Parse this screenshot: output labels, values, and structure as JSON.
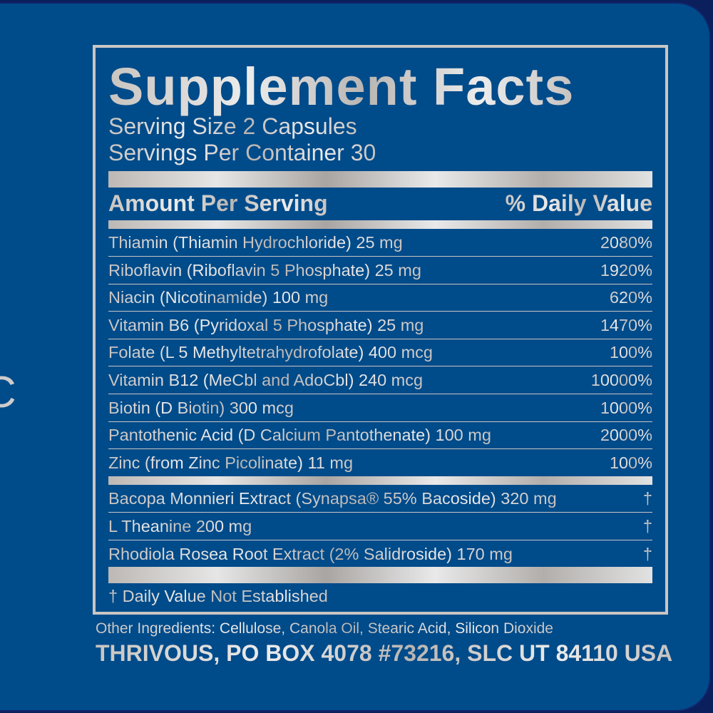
{
  "edge_letter": "C",
  "label": {
    "title": "Supplement Facts",
    "serving_size": "Serving Size 2 Capsules",
    "servings_per_container": "Servings Per Container 30",
    "header_amount": "Amount Per Serving",
    "header_dv": "% Daily Value",
    "vitamins": [
      {
        "name": "Thiamin (Thiamin Hydrochloride) 25 mg",
        "dv": "2080%"
      },
      {
        "name": "Riboflavin (Riboflavin 5 Phosphate) 25 mg",
        "dv": "1920%"
      },
      {
        "name": "Niacin (Nicotinamide) 100 mg",
        "dv": "620%"
      },
      {
        "name": "Vitamin B6 (Pyridoxal 5 Phosphate) 25 mg",
        "dv": "1470%"
      },
      {
        "name": "Folate (L 5 Methyltetrahydrofolate) 400 mcg",
        "dv": "100%"
      },
      {
        "name": "Vitamin B12 (MeCbl and AdoCbl) 240 mcg",
        "dv": "10000%"
      },
      {
        "name": "Biotin (D Biotin) 300 mcg",
        "dv": "1000%"
      },
      {
        "name": "Pantothenic Acid (D Calcium Pantothenate) 100 mg",
        "dv": "2000%"
      },
      {
        "name": "Zinc (from Zinc Picolinate) 11 mg",
        "dv": "100%"
      }
    ],
    "others": [
      {
        "name": "Bacopa Monnieri Extract (Synapsa® 55% Bacoside) 320 mg",
        "dv": "†"
      },
      {
        "name": "L Theanine 200 mg",
        "dv": "†"
      },
      {
        "name": "Rhodiola Rosea Root Extract (2% Salidroside) 170 mg",
        "dv": "†"
      }
    ],
    "footnote": "† Daily Value Not Established"
  },
  "other_ingredients": "Other Ingredients: Cellulose, Canola Oil, Stearic Acid, Silicon Dioxide",
  "address": "THRIVOUS, PO BOX 4078 #73216, SLC UT 84110 USA",
  "colors": {
    "background": "#004b8a",
    "silver": "#c9c6c4",
    "border": "#12246a"
  }
}
